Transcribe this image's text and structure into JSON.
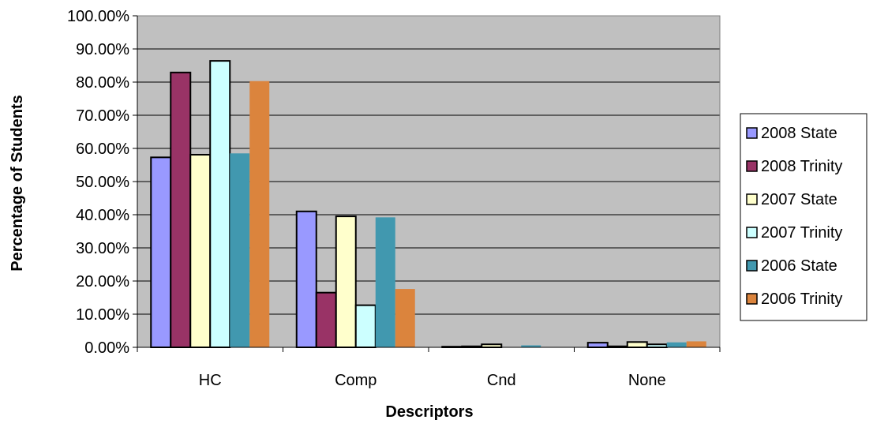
{
  "chart_data": {
    "type": "bar",
    "title": "",
    "xlabel": "Descriptors",
    "ylabel": "Percentage of Students",
    "categories": [
      "HC",
      "Comp",
      "Cnd",
      "None"
    ],
    "ylim": [
      0,
      100
    ],
    "yticks": [
      "0.00%",
      "10.00%",
      "20.00%",
      "30.00%",
      "40.00%",
      "50.00%",
      "60.00%",
      "70.00%",
      "80.00%",
      "90.00%",
      "100.00%"
    ],
    "grid": true,
    "legend_position": "right",
    "series": [
      {
        "name": "2008 State",
        "color": "#9999ff",
        "values": [
          57.3,
          41.0,
          0.2,
          1.4
        ]
      },
      {
        "name": "2008 Trinity",
        "color": "#993366",
        "values": [
          82.9,
          16.5,
          0.3,
          0.3
        ]
      },
      {
        "name": "2007 State",
        "color": "#ffffcc",
        "values": [
          58.1,
          39.5,
          0.9,
          1.6
        ]
      },
      {
        "name": "2007 Trinity",
        "color": "#ccffff",
        "values": [
          86.4,
          12.7,
          0.0,
          0.9
        ]
      },
      {
        "name": "2006 State",
        "color": "#4198af",
        "values": [
          58.5,
          39.2,
          0.6,
          1.5
        ]
      },
      {
        "name": "2006 Trinity",
        "color": "#db843d",
        "values": [
          80.3,
          17.6,
          0.0,
          1.8
        ]
      }
    ],
    "colors": {
      "plot_background": "#c0c0c0",
      "gridline": "#000000",
      "bar_border": "#000000"
    }
  }
}
